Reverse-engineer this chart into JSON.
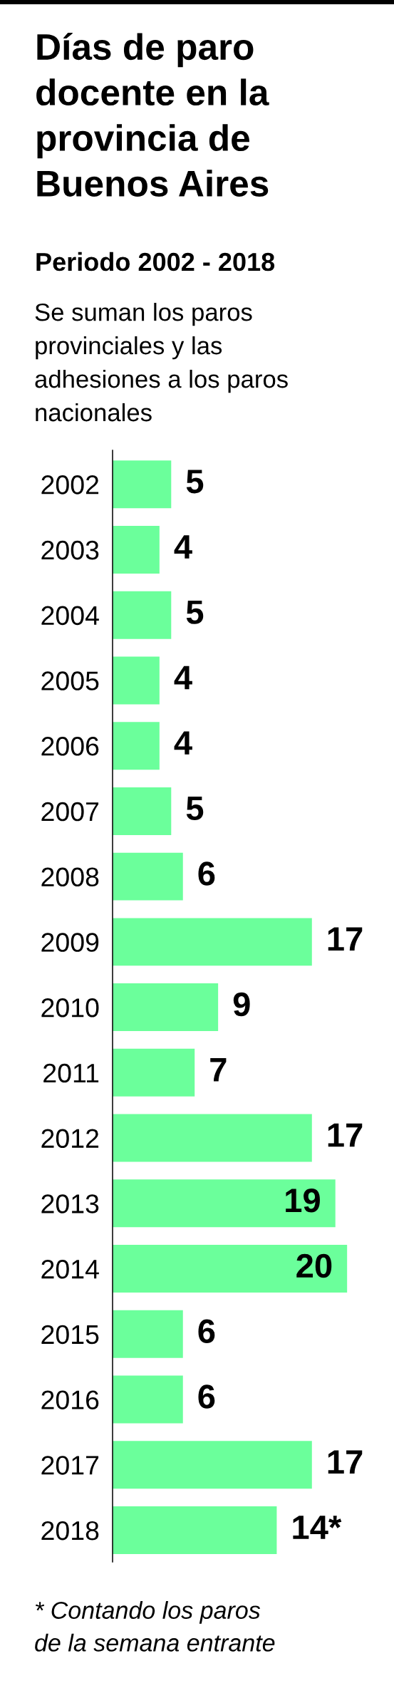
{
  "chart_data": {
    "type": "bar",
    "orientation": "horizontal",
    "title": "Días de paro docente en la provincia de Buenos Aires",
    "subtitle": "Periodo 2002 - 2018",
    "annotations": [
      "Se suman los paros provinciales y las adhesiones a los paros nacionales",
      "* Contando los paros de la semana entrante"
    ],
    "categories": [
      "2002",
      "2003",
      "2004",
      "2005",
      "2006",
      "2007",
      "2008",
      "2009",
      "2010",
      "2011",
      "2012",
      "2013",
      "2014",
      "2015",
      "2016",
      "2017",
      "2018"
    ],
    "values": [
      5,
      4,
      5,
      4,
      4,
      5,
      6,
      17,
      9,
      7,
      17,
      19,
      20,
      6,
      6,
      17,
      14
    ],
    "value_labels": [
      "5",
      "4",
      "5",
      "4",
      "4",
      "5",
      "6",
      "17",
      "9",
      "7",
      "17",
      "19",
      "20",
      "6",
      "6",
      "17",
      "14*"
    ],
    "color": "#6bff9b",
    "tick_labels": "y"
  }
}
